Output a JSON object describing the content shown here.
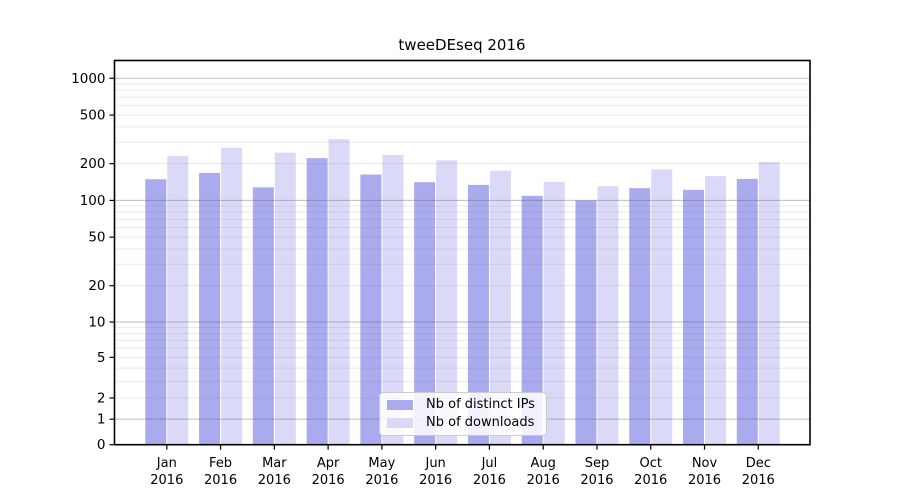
{
  "chart_data": {
    "type": "bar",
    "title": "tweeDEseq 2016",
    "xlabel": "",
    "ylabel": "",
    "categories": [
      "Jan 2016",
      "Feb 2016",
      "Mar 2016",
      "Apr 2016",
      "May 2016",
      "Jun 2016",
      "Jul 2016",
      "Aug 2016",
      "Sep 2016",
      "Oct 2016",
      "Nov 2016",
      "Dec 2016"
    ],
    "series": [
      {
        "name": "Nb of distinct IPs",
        "color": "#aaaaee",
        "values": [
          149,
          168,
          128,
          222,
          163,
          141,
          134,
          109,
          100,
          126,
          122,
          150
        ]
      },
      {
        "name": "Nb of downloads",
        "color": "#dadaf8",
        "values": [
          232,
          270,
          246,
          318,
          236,
          213,
          175,
          142,
          131,
          180,
          158,
          207
        ]
      }
    ],
    "y_ticks": [
      0,
      1,
      2,
      5,
      10,
      20,
      50,
      100,
      200,
      500,
      1000
    ],
    "yscale": "pseudo-log (asinh)",
    "ylim": [
      0,
      1410
    ],
    "grid": "horizontal major lines at 1,10,100,1000 and faint minor log lines, drawn over bars",
    "legend_position": "inside bottom-center"
  }
}
